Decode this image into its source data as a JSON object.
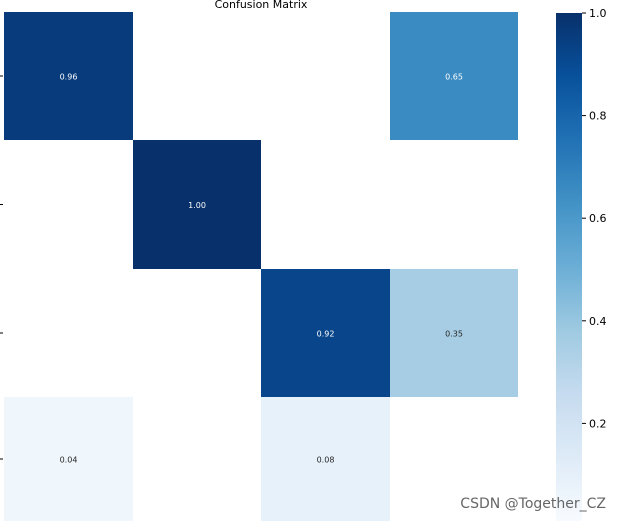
{
  "chart_data": {
    "type": "heatmap",
    "title": "Confusion Matrix",
    "rows": 4,
    "cols": 4,
    "cells": [
      {
        "row": 0,
        "col": 0,
        "value": 0.96,
        "label": "0.96"
      },
      {
        "row": 0,
        "col": 3,
        "value": 0.65,
        "label": "0.65"
      },
      {
        "row": 1,
        "col": 1,
        "value": 1.0,
        "label": "1.00"
      },
      {
        "row": 2,
        "col": 2,
        "value": 0.92,
        "label": "0.92"
      },
      {
        "row": 2,
        "col": 3,
        "value": 0.35,
        "label": "0.35"
      },
      {
        "row": 3,
        "col": 0,
        "value": 0.04,
        "label": "0.04"
      },
      {
        "row": 3,
        "col": 2,
        "value": 0.08,
        "label": "0.08"
      }
    ],
    "colorbar": {
      "colormap": "Blues",
      "range": [
        0.0,
        1.0
      ],
      "ticks": [
        {
          "value": 0.2,
          "label": "0.2"
        },
        {
          "value": 0.4,
          "label": "0.4"
        },
        {
          "value": 0.6,
          "label": "0.6"
        },
        {
          "value": 0.8,
          "label": "0.8"
        },
        {
          "value": 1.0,
          "label": "1.0"
        }
      ]
    },
    "colors": {
      "dark": "#08306b",
      "light": "#f7fbff",
      "text_dark_bg": "#ffffff",
      "text_light_bg": "#262626"
    }
  },
  "watermark": {
    "text": "CSDN @Together_CZ"
  }
}
